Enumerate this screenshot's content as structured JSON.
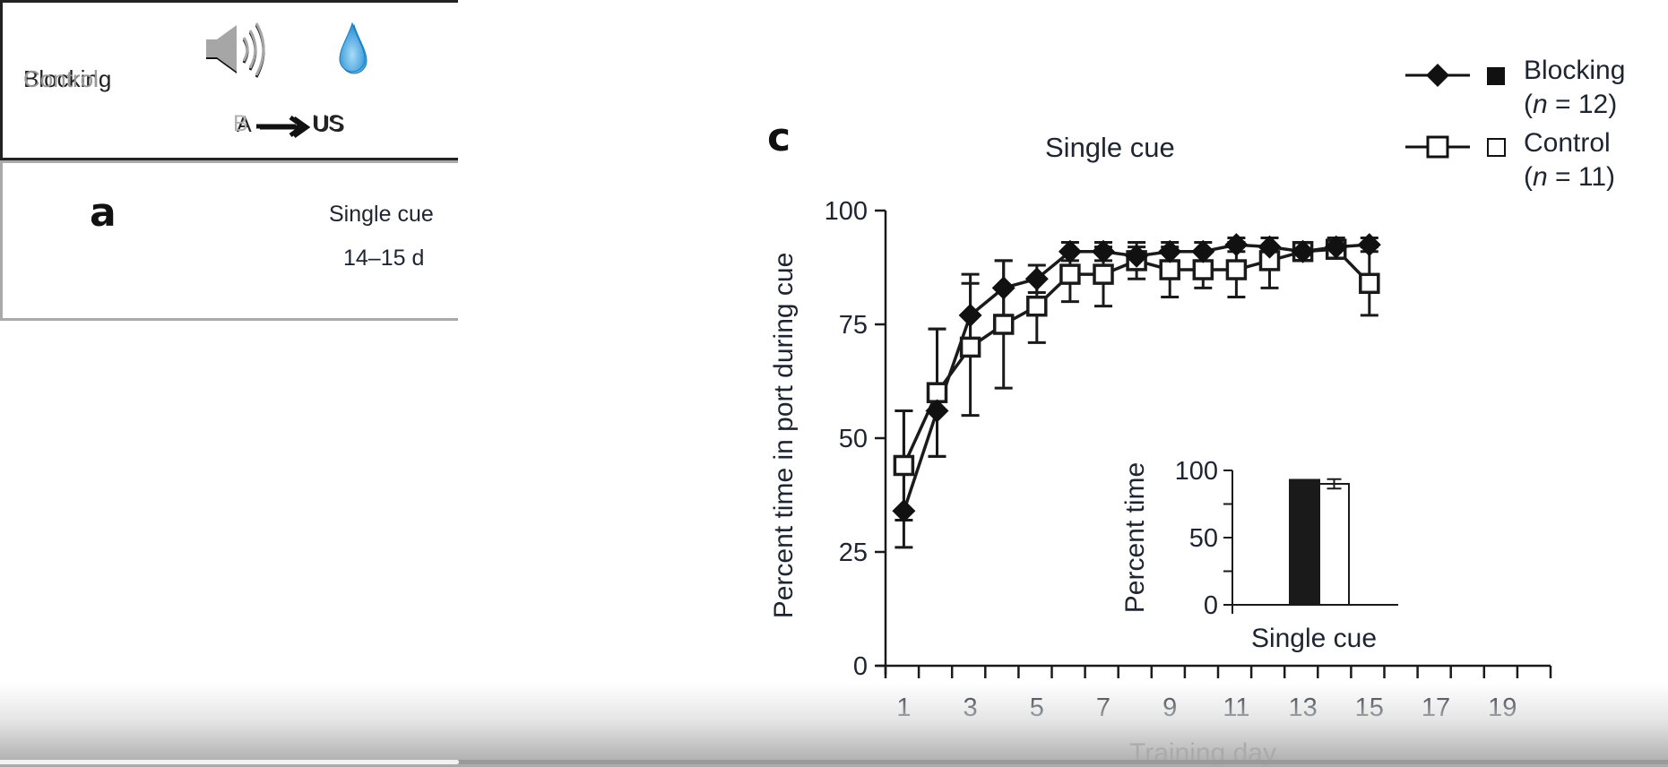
{
  "panel_a": {
    "letter": "a",
    "header_line1": "Single cue",
    "header_line2": "14–15 d",
    "conditions": [
      {
        "name": "Blocking",
        "cue_letter": "A",
        "outcome": "US",
        "icons": [
          "speaker-icon",
          "water-drop-icon"
        ],
        "arrow": "long-right-arrow"
      },
      {
        "name": "Control",
        "cue_letter": "B",
        "outcome": "US",
        "icons": [
          "speaker-icon",
          "water-drop-icon"
        ],
        "arrow": "long-right-arrow"
      }
    ],
    "colors": {
      "blocking": "#222222",
      "control": "#aaaaaa",
      "drop": "#3aa0dc"
    }
  },
  "legend": {
    "items": [
      {
        "label": "Blocking",
        "n_text": "(n = 12)",
        "n_prefix": "(",
        "n_var": "n",
        "n_suffix": " = 12)",
        "marker": "filled-diamond",
        "bar": "filled-square"
      },
      {
        "label": "Control",
        "n_text": "(n = 11)",
        "n_prefix": "(",
        "n_var": "n",
        "n_suffix": " = 11)",
        "marker": "open-square",
        "bar": "open-square"
      }
    ]
  },
  "video": {
    "progress": 0.275
  },
  "chart_data": [
    {
      "panel_letter": "c",
      "type": "line",
      "title": "Single cue",
      "xlabel": "Training day",
      "ylabel": "Percent time in port during cue",
      "xlim": [
        0,
        20
      ],
      "ylim": [
        0,
        100
      ],
      "yticks": [
        0,
        25,
        50,
        75,
        100
      ],
      "xticks_labeled": [
        1,
        3,
        5,
        7,
        9,
        11,
        13,
        15,
        17,
        19
      ],
      "x_minor_ticks": 20,
      "grid": false,
      "legend_position": "top-right",
      "x": [
        1,
        2,
        3,
        4,
        5,
        6,
        7,
        8,
        9,
        10,
        11,
        12,
        13,
        14,
        15
      ],
      "series": [
        {
          "name": "Blocking",
          "marker": "diamond",
          "fill": "#111111",
          "values": [
            34,
            56,
            77,
            83,
            85,
            91,
            91,
            90,
            91,
            91,
            92.5,
            92,
            91,
            92,
            92.5
          ],
          "err_plus": [
            22,
            18,
            9,
            6,
            3,
            2,
            2,
            2,
            2,
            2,
            1.5,
            2,
            2,
            2,
            1.5
          ],
          "err_minus": [
            8,
            10,
            9,
            6,
            3,
            2,
            2,
            2,
            2,
            2,
            1.5,
            2,
            2,
            2,
            1.5
          ]
        },
        {
          "name": "Control",
          "marker": "square",
          "fill": "#ffffff",
          "values": [
            44,
            60,
            70,
            75,
            79,
            86,
            86,
            89,
            87,
            87,
            87,
            89,
            91,
            91.5,
            84
          ],
          "err_plus": [
            12,
            14,
            14,
            14,
            6,
            5,
            6,
            4,
            5,
            4,
            6,
            5,
            2,
            2,
            8
          ],
          "err_minus": [
            12,
            14,
            15,
            14,
            8,
            6,
            7,
            4,
            6,
            4,
            6,
            6,
            2,
            2,
            7
          ]
        }
      ]
    },
    {
      "type": "bar",
      "title": "",
      "categories": [
        "Single cue"
      ],
      "xlabel": "Single cue",
      "ylabel": "Percent time",
      "ylim": [
        0,
        100
      ],
      "yticks_labeled": [
        0,
        50,
        100
      ],
      "yticks_minor": [
        25,
        75
      ],
      "series": [
        {
          "name": "Blocking",
          "values": [
            93
          ],
          "err": [
            0
          ],
          "fill": "#1a1a1a"
        },
        {
          "name": "Control",
          "values": [
            90
          ],
          "err": [
            3.5
          ],
          "fill": "#ffffff"
        }
      ]
    }
  ]
}
